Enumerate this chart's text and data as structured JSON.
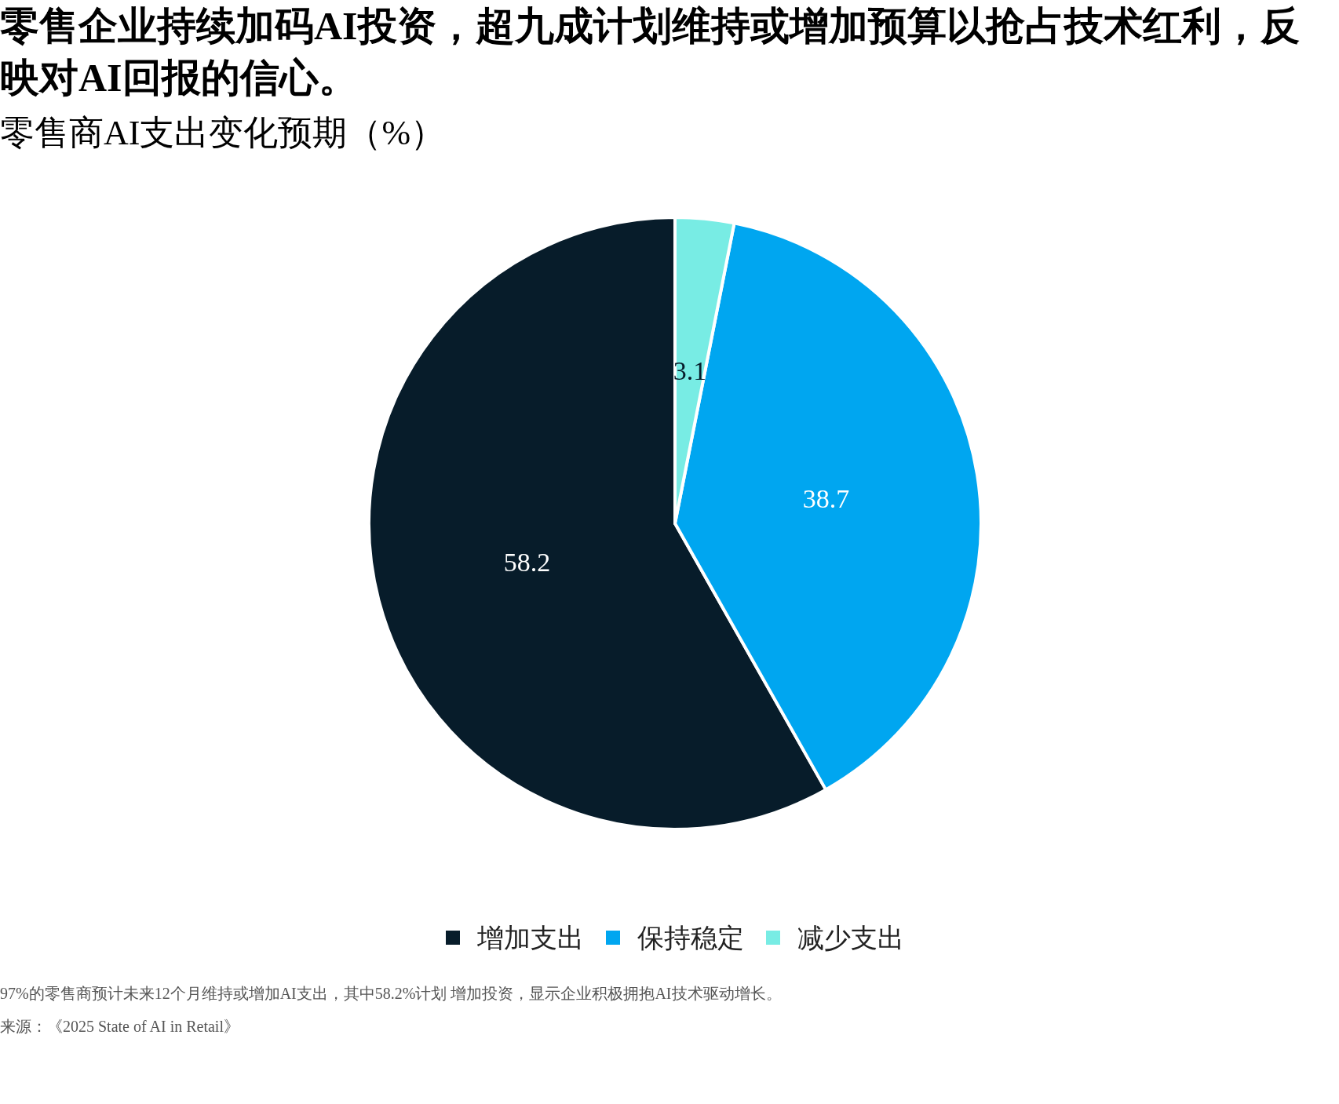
{
  "chart_data": {
    "type": "pie",
    "title": "零售企业持续加码AI投资，超九成计划维持或增加预算以抢占技术红利，反映对AI回报的信心。",
    "subtitle": "零售商AI支出变化预期（%）",
    "categories": [
      "增加支出",
      "保持稳定",
      "减少支出"
    ],
    "values": [
      58.2,
      38.7,
      3.1
    ],
    "colors": [
      "#071c2a",
      "#00a6f0",
      "#78ece4"
    ],
    "data_labels": true,
    "legend": "bottom",
    "annotations": [
      "97%的零售商预计未来12个月维持或增加AI支出，其中58.2%计划 增加投资，显示企业积极拥抱AI技术驱动增长。",
      "来源：《2025 State of AI in Retail》"
    ]
  }
}
